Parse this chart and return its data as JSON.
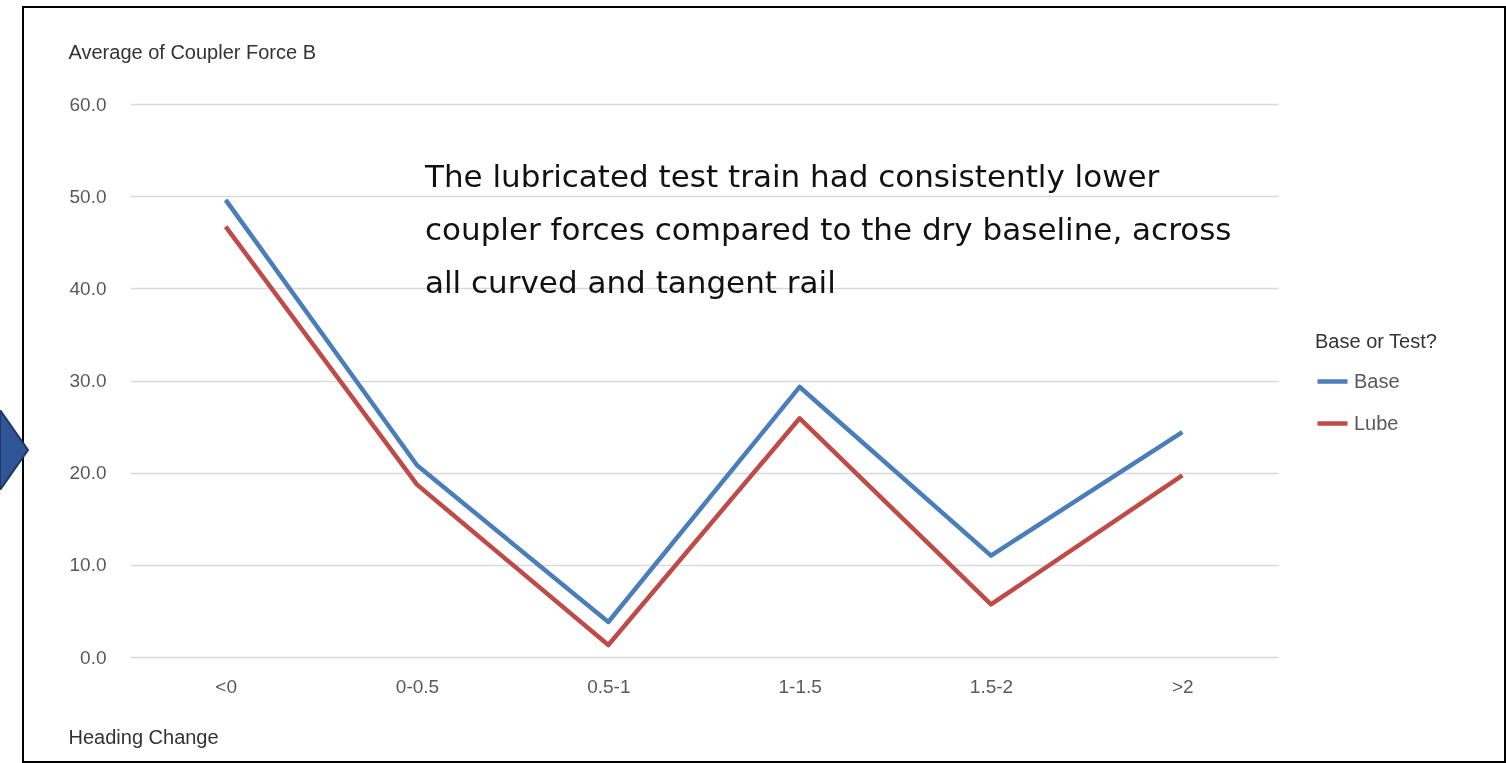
{
  "chart_data": {
    "type": "line",
    "ylabel": "Average of Coupler Force B",
    "xlabel": "Heading Change",
    "legend_title": "Base or Test?",
    "categories": [
      "<0",
      "0-0.5",
      "0.5-1",
      "1-1.5",
      "1.5-2",
      ">2"
    ],
    "series": [
      {
        "name": "Base",
        "color": "#4a7ebb",
        "values": [
          49.6,
          20.8,
          3.8,
          29.3,
          11.0,
          24.4
        ]
      },
      {
        "name": "Lube",
        "color": "#be4b48",
        "values": [
          46.7,
          18.7,
          1.3,
          25.9,
          5.7,
          19.7
        ]
      }
    ],
    "ylim": [
      0,
      60
    ],
    "yticks": [
      {
        "value": 0,
        "label": "0.0"
      },
      {
        "value": 10,
        "label": "10.0"
      },
      {
        "value": 20,
        "label": "20.0"
      },
      {
        "value": 30,
        "label": "30.0"
      },
      {
        "value": 40,
        "label": "40.0"
      },
      {
        "value": 50,
        "label": "50.0"
      },
      {
        "value": 60,
        "label": "60.0"
      }
    ],
    "grid": "y",
    "legend": "right",
    "line_style": "solid",
    "marker": "none",
    "annotations": [
      "The lubricated test train had consistently lower coupler forces compared to the dry baseline, across all curved and tangent rail"
    ]
  }
}
